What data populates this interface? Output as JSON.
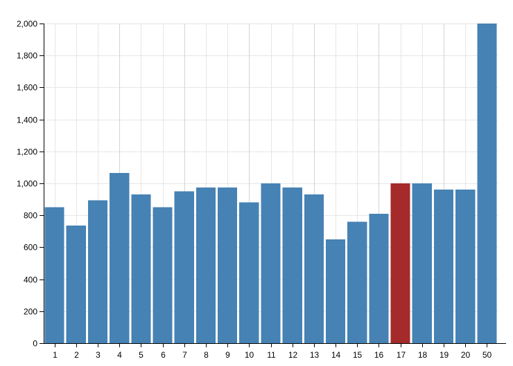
{
  "chart_data": {
    "type": "bar",
    "categories": [
      "1",
      "2",
      "3",
      "4",
      "5",
      "6",
      "7",
      "8",
      "9",
      "10",
      "11",
      "12",
      "13",
      "14",
      "15",
      "16",
      "17",
      "18",
      "19",
      "20",
      "50"
    ],
    "values": [
      850,
      735,
      895,
      1065,
      930,
      850,
      950,
      975,
      975,
      880,
      1000,
      975,
      930,
      650,
      760,
      810,
      1000,
      1000,
      960,
      960,
      2000
    ],
    "ylim": [
      0,
      2000
    ],
    "yticks": [
      0,
      200,
      400,
      600,
      800,
      1000,
      1200,
      1400,
      1600,
      1800,
      2000
    ],
    "ytick_labels": [
      "0",
      "200",
      "400",
      "600",
      "800",
      "1,000",
      "1,200",
      "1,400",
      "1,600",
      "1,800",
      "2,000"
    ],
    "highlight_index": 16,
    "grid": true,
    "colors": {
      "bar": "#4682b4",
      "highlight": "#a52a2a",
      "grid": "#e6e6e6",
      "axis": "#000000"
    }
  }
}
